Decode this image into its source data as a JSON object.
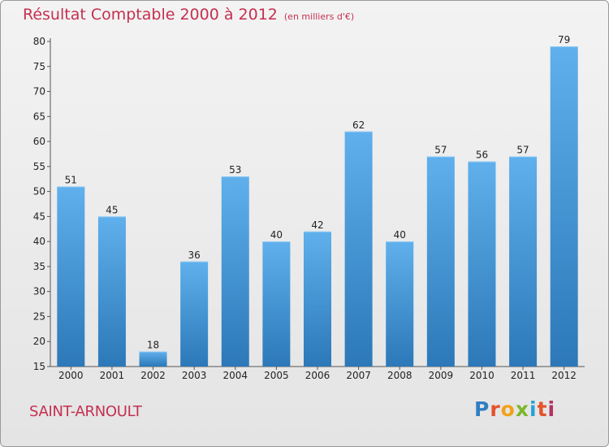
{
  "header": {
    "title": "Résultat Comptable 2000 à 2012",
    "subtitle": "(en milliers d'€)"
  },
  "footer": {
    "place": "SAINT-ARNOULT",
    "logo_text": "Proxiti"
  },
  "colors": {
    "bar_top": "#5fb0ec",
    "bar_bottom": "#2c78b8",
    "title": "#c4304f"
  },
  "chart_data": {
    "type": "bar",
    "title": "Résultat Comptable 2000 à 2012",
    "subtitle": "(en milliers d'€)",
    "xlabel": "",
    "ylabel": "",
    "categories": [
      "2000",
      "2001",
      "2002",
      "2003",
      "2004",
      "2005",
      "2006",
      "2007",
      "2008",
      "2009",
      "2010",
      "2011",
      "2012"
    ],
    "values": [
      51,
      45,
      18,
      36,
      53,
      40,
      42,
      62,
      40,
      57,
      56,
      57,
      79
    ],
    "ylim": [
      15,
      80
    ],
    "yticks": [
      15,
      20,
      25,
      30,
      35,
      40,
      45,
      50,
      55,
      60,
      65,
      70,
      75,
      80
    ],
    "grid": false,
    "data_labels": true
  }
}
